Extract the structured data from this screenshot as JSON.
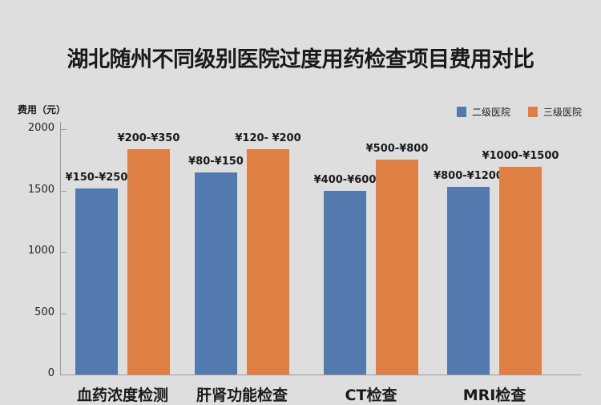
{
  "chart_data": {
    "type": "bar",
    "title": "湖北随州不同级别医院过度用药检查项目费用对比",
    "xlabel": "",
    "ylabel": "费用（元）",
    "ylim": [
      0,
      2000
    ],
    "yticks": [
      0,
      500,
      1000,
      1500,
      2000
    ],
    "grid": false,
    "legend_position": "top-right",
    "categories": [
      "血药浓度检测",
      "肝肾功能检查",
      "CT检查",
      "MRI检查"
    ],
    "series": [
      {
        "name": "二级医院",
        "color": "#527aae",
        "values": [
          1515,
          1650,
          1500,
          1530
        ],
        "labels": [
          "¥150-¥250",
          "¥80-¥150",
          "¥400-¥600",
          "¥800-¥1200"
        ]
      },
      {
        "name": "三级医院",
        "color": "#e07f43",
        "values": [
          1835,
          1835,
          1750,
          1690
        ],
        "labels": [
          "¥200-¥350",
          "¥120- ¥200",
          "¥500-¥800",
          "¥1000-¥1500"
        ]
      }
    ]
  }
}
